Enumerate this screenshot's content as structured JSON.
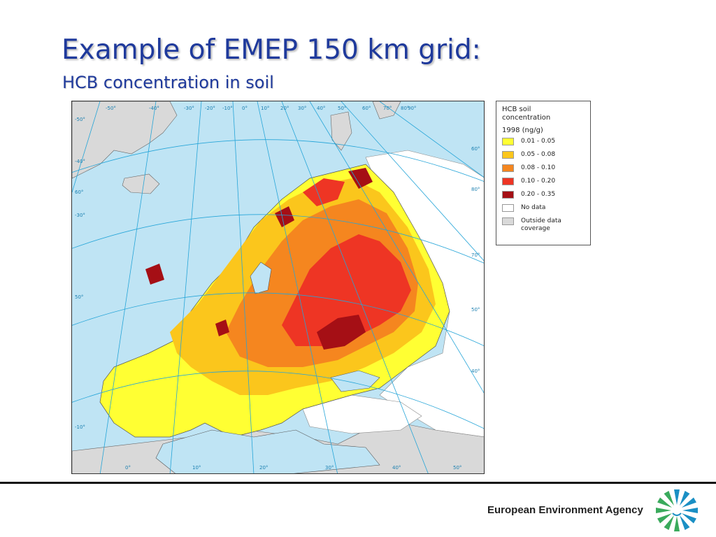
{
  "slide": {
    "title": "Example of EMEP 150 km grid:",
    "subtitle": "HCB concentration in soil"
  },
  "legend": {
    "title_line1": "HCB soil",
    "title_line2": "concentration",
    "year": "1998 (ng/g)",
    "items": [
      {
        "label": "0.01 - 0.05",
        "color": "#ffff33"
      },
      {
        "label": "0.05 - 0.08",
        "color": "#fbc61c"
      },
      {
        "label": "0.08 - 0.10",
        "color": "#f5861f"
      },
      {
        "label": "0.10 - 0.20",
        "color": "#ee3524"
      },
      {
        "label": "0.20 - 0.35",
        "color": "#a50f15"
      },
      {
        "label": "No data",
        "color": "#ffffff"
      },
      {
        "label": "Outside data coverage",
        "color": "#d9d9d9"
      }
    ]
  },
  "map": {
    "graticule_labels": {
      "top": [
        "-50°",
        "-40°",
        "-30°",
        "-20°",
        "-10°",
        "0°",
        "10°",
        "20°",
        "30°",
        "40°",
        "50°",
        "60°",
        "70°",
        "80°",
        "90°"
      ],
      "left": [
        "-50°",
        "-40°",
        "60°",
        "-30°",
        "50°",
        "-10°"
      ],
      "right": [
        "60°",
        "80°",
        "70°",
        "50°",
        "40°"
      ],
      "bottom": [
        "0°",
        "10°",
        "20°",
        "30°",
        "40°",
        "50°"
      ]
    }
  },
  "footer": {
    "agency": "European Environment Agency"
  }
}
